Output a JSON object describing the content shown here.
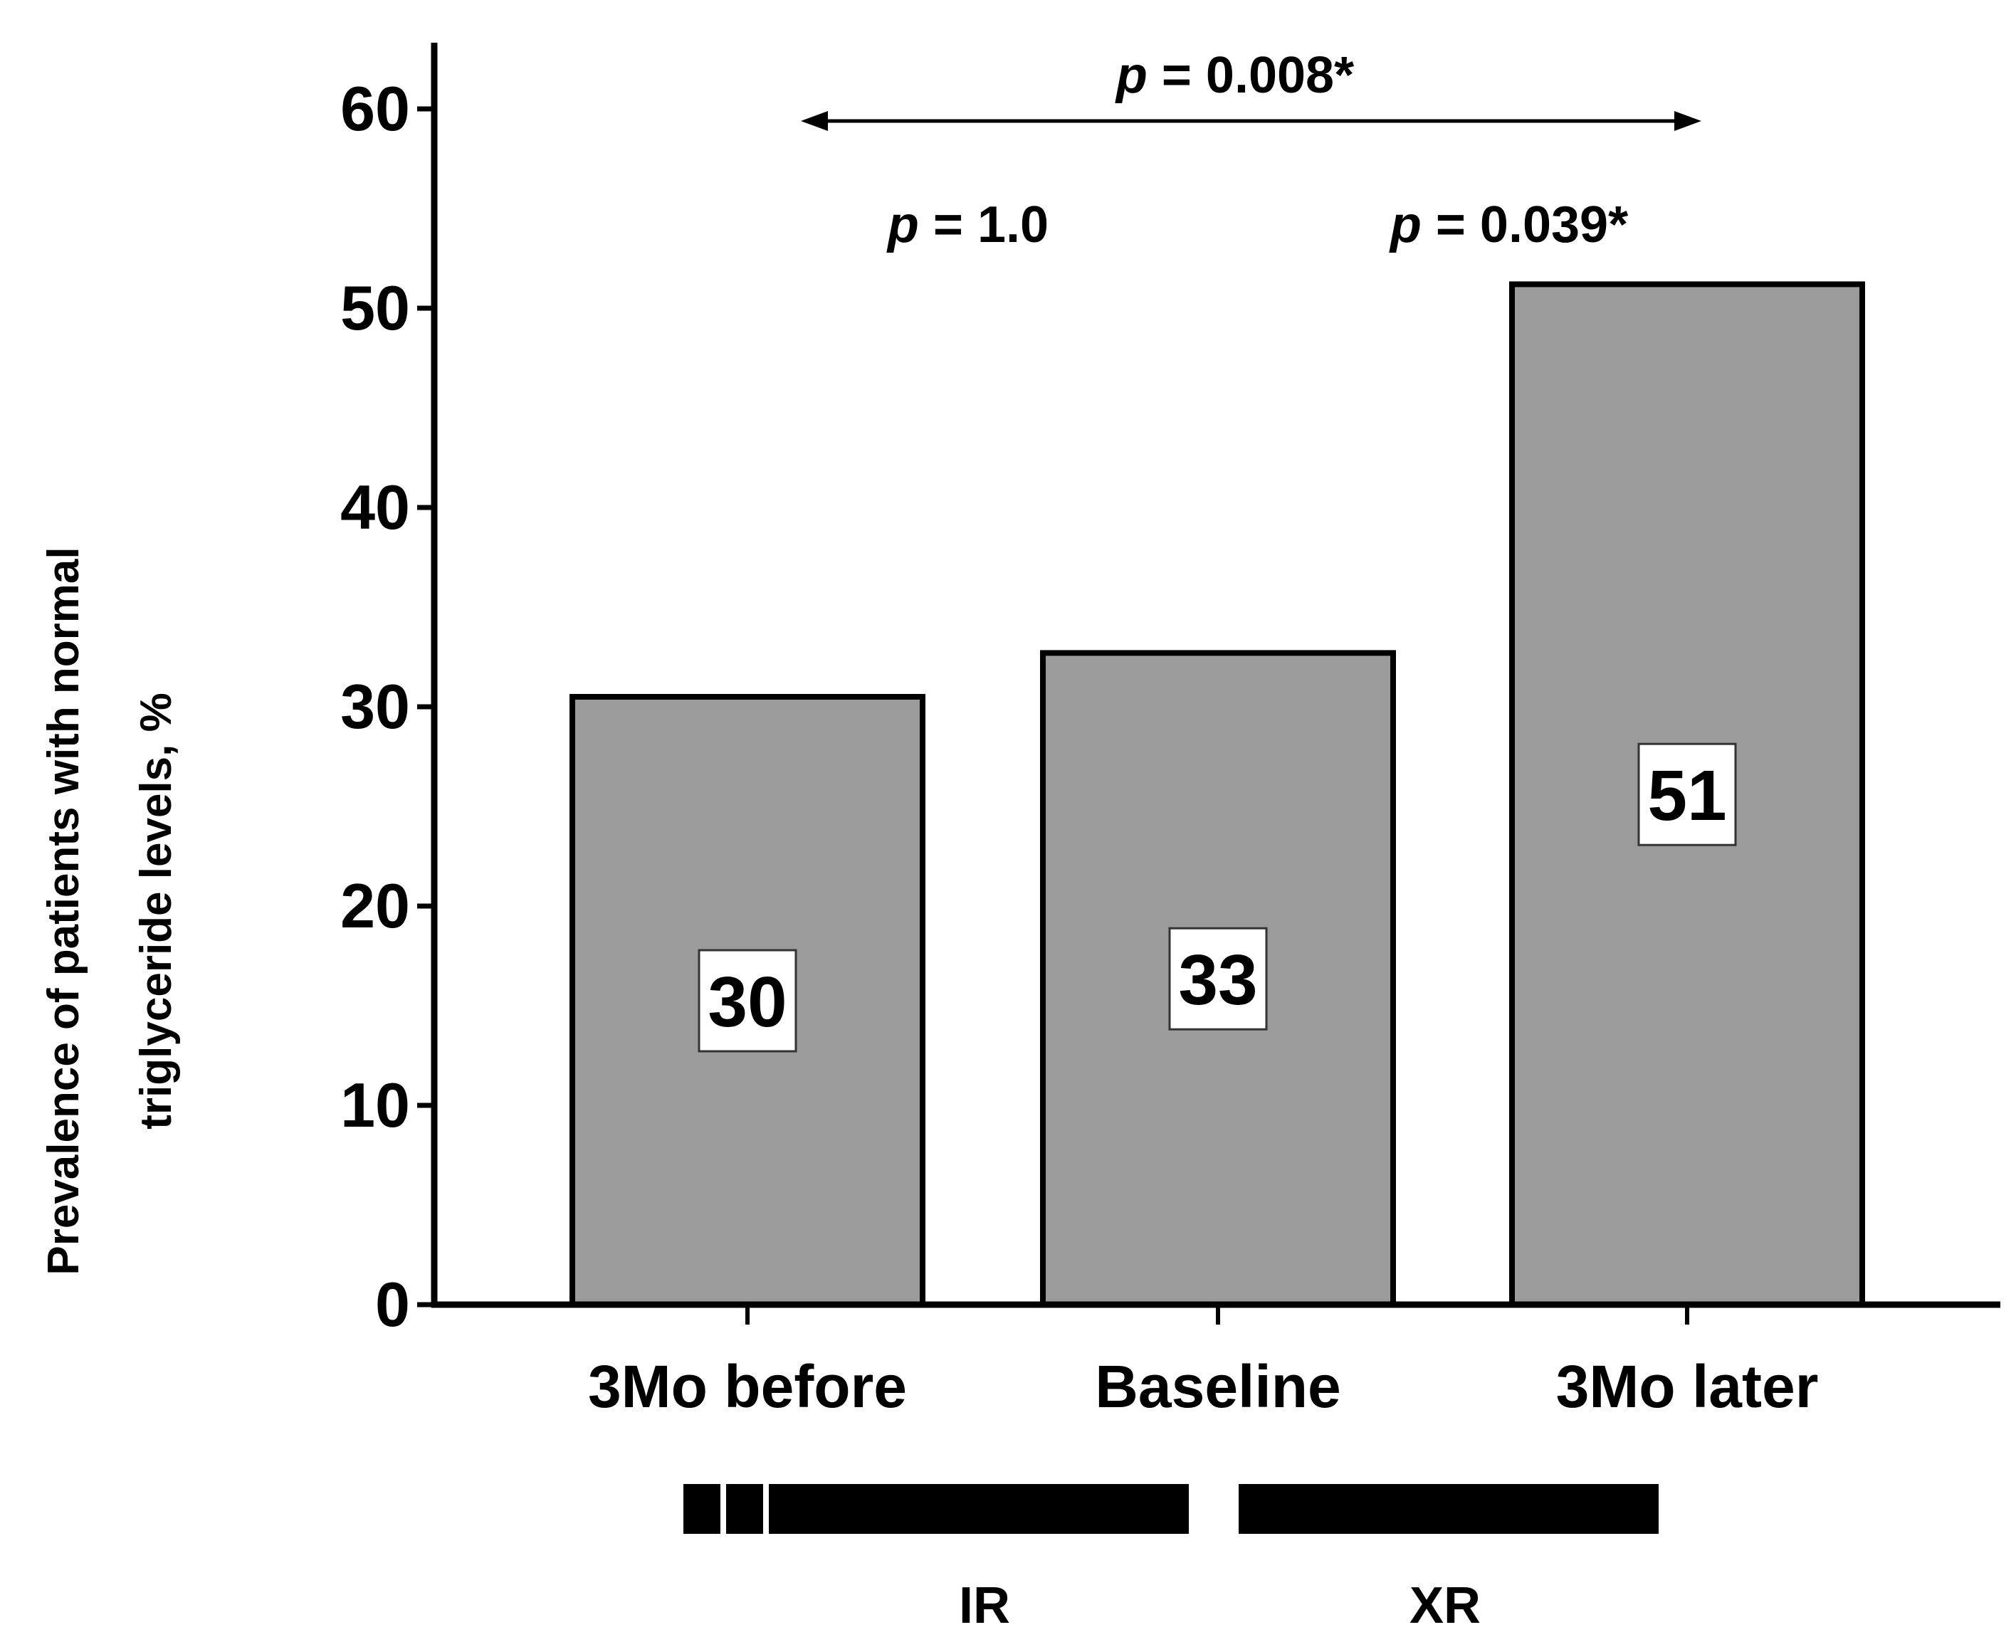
{
  "chart_data": {
    "type": "bar",
    "categories": [
      "3Mo before",
      "Baseline",
      "3Mo later"
    ],
    "values": [
      30.5,
      32.7,
      51.2
    ],
    "value_labels": [
      "30",
      "33",
      "51"
    ],
    "title": "",
    "xlabel": "",
    "ylabel_lines": [
      "Prevalence of patients with normal",
      "triglyceride levels, %"
    ],
    "ylim": [
      0,
      60
    ],
    "yticks": [
      0,
      10,
      20,
      30,
      40,
      50,
      60
    ],
    "grid": false,
    "bar_color": "#9b9b9b",
    "annotations": {
      "overall": {
        "prefix": "p",
        "text": " = 0.008*",
        "from": "3Mo before",
        "to": "3Mo later"
      },
      "pairwise": [
        {
          "prefix": "p",
          "text": " = 1.0"
        },
        {
          "prefix": "p",
          "text": " = 0.039*"
        }
      ]
    },
    "periods": [
      {
        "label": "IR"
      },
      {
        "label": "XR"
      }
    ]
  }
}
